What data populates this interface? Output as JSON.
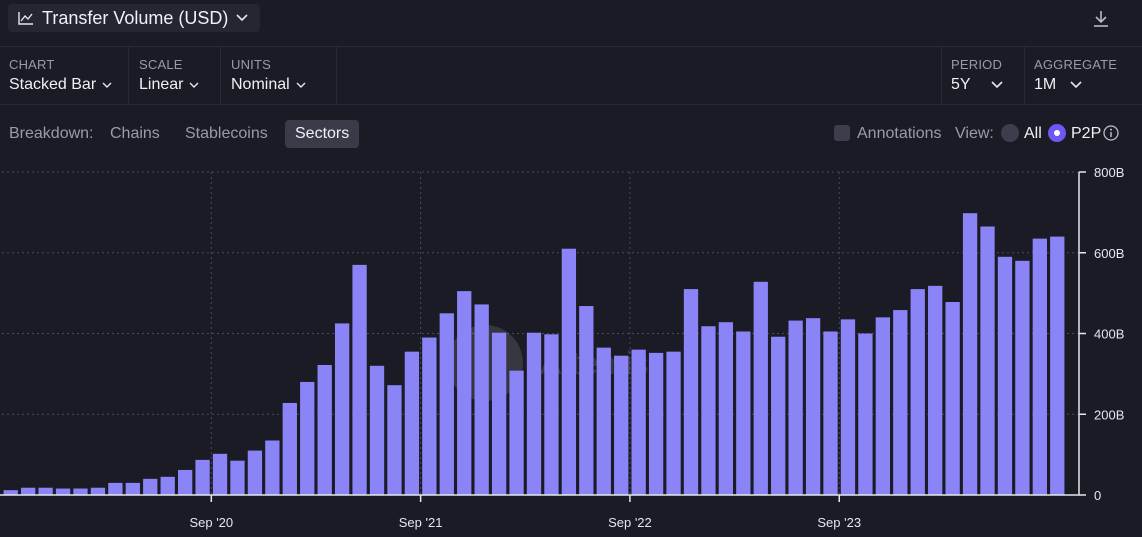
{
  "header": {
    "title": "Transfer Volume (USD)",
    "icons": {
      "chart": "line-chart-icon",
      "dropdown": "chevron-down-icon",
      "download": "download-icon"
    }
  },
  "controls": {
    "chart": {
      "label": "CHART",
      "value": "Stacked Bar"
    },
    "scale": {
      "label": "SCALE",
      "value": "Linear"
    },
    "units": {
      "label": "UNITS",
      "value": "Nominal"
    },
    "period": {
      "label": "PERIOD",
      "value": "5Y"
    },
    "aggregate": {
      "label": "AGGREGATE",
      "value": "1M"
    }
  },
  "breakdown": {
    "label": "Breakdown:",
    "tabs": [
      "Chains",
      "Stablecoins",
      "Sectors"
    ],
    "active": "Sectors"
  },
  "annotations": {
    "label": "Annotations",
    "checked": false
  },
  "view": {
    "label": "View:",
    "options": [
      "All",
      "P2P"
    ],
    "selected": "P2P"
  },
  "watermark": "Artemis",
  "colors": {
    "bar": "#8a84f7",
    "background": "#1b1b26",
    "accent": "#6d57f5"
  },
  "chart_data": {
    "type": "bar",
    "title": "Transfer Volume (USD)",
    "unit": "USD",
    "ylim": [
      0,
      800
    ],
    "y_ticks": [
      0,
      200,
      400,
      600,
      800
    ],
    "y_tick_labels": [
      "0",
      "200B",
      "400B",
      "600B",
      "800B"
    ],
    "x_tick_labels": [
      "Sep '20",
      "Sep '21",
      "Sep '22",
      "Sep '23"
    ],
    "x_tick_after_bar_index": [
      11,
      23,
      35,
      47
    ],
    "grid": true,
    "series": [
      {
        "name": "P2P",
        "values": [
          12,
          18,
          18,
          16,
          16,
          18,
          30,
          30,
          40,
          45,
          62,
          87,
          102,
          85,
          110,
          135,
          228,
          280,
          322,
          425,
          570,
          320,
          272,
          355,
          390,
          450,
          505,
          472,
          402,
          308,
          402,
          398,
          610,
          468,
          365,
          345,
          360,
          352,
          355,
          510,
          418,
          428,
          405,
          528,
          392,
          432,
          438,
          405,
          435,
          400,
          440,
          458,
          510,
          518,
          478,
          698,
          665,
          590,
          580,
          635,
          640
        ]
      }
    ]
  }
}
